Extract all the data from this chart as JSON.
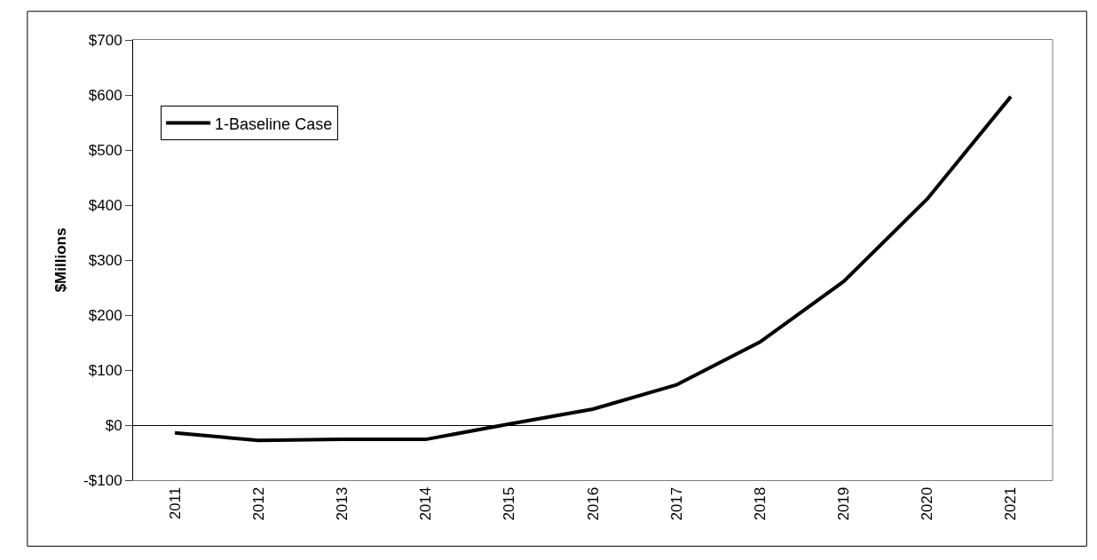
{
  "chart_data": {
    "type": "line",
    "ylabel": "$Millions",
    "categories": [
      "2011",
      "2012",
      "2013",
      "2014",
      "2015",
      "2016",
      "2017",
      "2018",
      "2019",
      "2020",
      "2021"
    ],
    "series": [
      {
        "name": "1-Baseline Case",
        "color": "#000000",
        "values": [
          -14,
          -28,
          -26,
          -26,
          2,
          29,
          73,
          151,
          261,
          411,
          597
        ]
      }
    ],
    "ylim": [
      -100,
      700
    ],
    "yticks": [
      {
        "value": -100,
        "label": "-$100"
      },
      {
        "value": 0,
        "label": "$0"
      },
      {
        "value": 100,
        "label": "$100"
      },
      {
        "value": 200,
        "label": "$200"
      },
      {
        "value": 300,
        "label": "$300"
      },
      {
        "value": 400,
        "label": "$400"
      },
      {
        "value": 500,
        "label": "$500"
      },
      {
        "value": 600,
        "label": "$600"
      },
      {
        "value": 700,
        "label": "$700"
      }
    ],
    "legend": "top left",
    "marker": "none",
    "line_style": "solid"
  }
}
